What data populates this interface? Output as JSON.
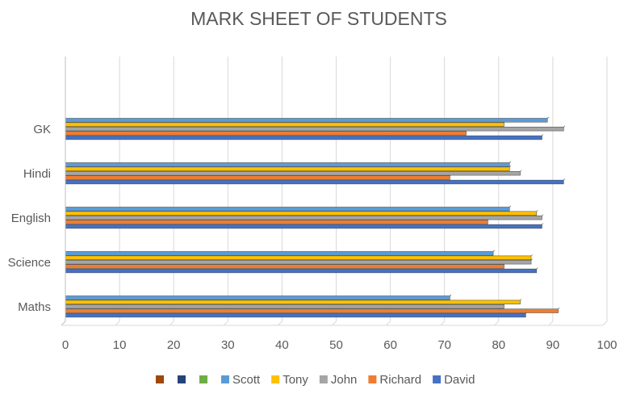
{
  "chart_data": {
    "type": "bar",
    "orientation": "horizontal",
    "title": "MARK SHEET OF STUDENTS",
    "categories": [
      "Maths",
      "Science",
      "English",
      "Hindi",
      "GK"
    ],
    "xlim": [
      0,
      100
    ],
    "xticks": [
      0,
      10,
      20,
      30,
      40,
      50,
      60,
      70,
      80,
      90,
      100
    ],
    "grid": "vertical",
    "legend_position": "bottom",
    "series": [
      {
        "name": "David",
        "color": "#4472C4",
        "values": [
          85,
          87,
          88,
          92,
          88
        ]
      },
      {
        "name": "Richard",
        "color": "#ED7D31",
        "values": [
          91,
          81,
          78,
          71,
          74
        ]
      },
      {
        "name": "John",
        "color": "#A5A5A5",
        "values": [
          81,
          86,
          88,
          84,
          92
        ]
      },
      {
        "name": "Tony",
        "color": "#FFC000",
        "values": [
          84,
          86,
          87,
          82,
          81
        ]
      },
      {
        "name": "Scott",
        "color": "#5B9BD5",
        "values": [
          71,
          79,
          82,
          82,
          89
        ]
      }
    ],
    "legend_blank_swatches": [
      "#9E480E",
      "#264478",
      "#70AD47"
    ]
  }
}
